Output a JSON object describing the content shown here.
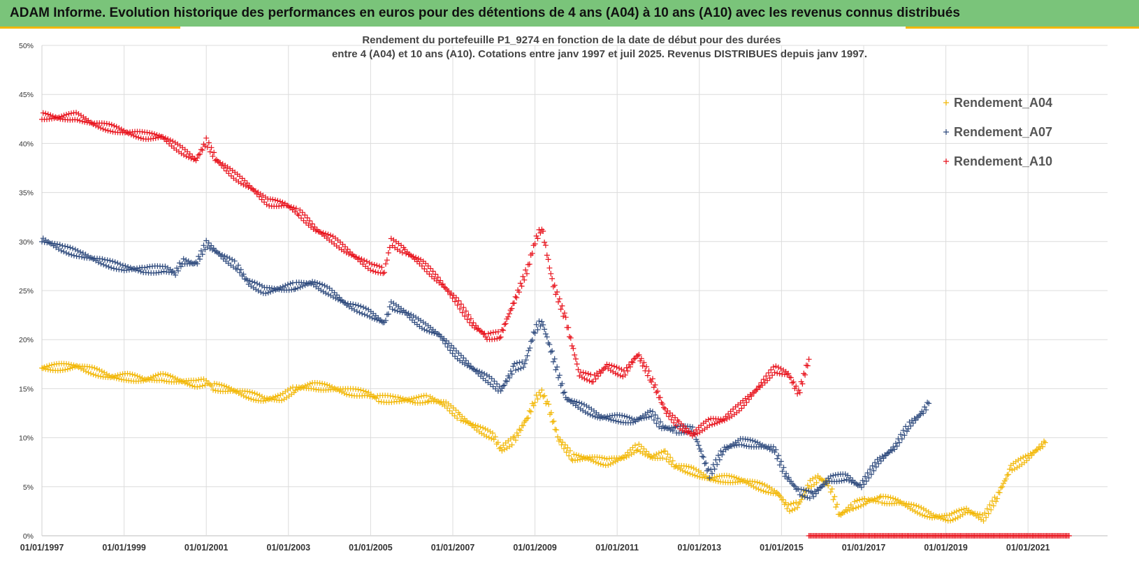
{
  "header": {
    "banner": "ADAM Informe. Evolution historique des performances en euros pour des détentions de 4 ans (A04) à 10 ans (A10) avec les revenus connus distribués",
    "banner_color": "#7ac47a",
    "accent_color": "#f2b705"
  },
  "chart_data": {
    "type": "scatter",
    "title_line1": "Rendement du portefeuille P1_9274 en fonction de la date de début pour des durées",
    "title_line2": "entre 4 (A04) et 10 ans (A10). Cotations  entre janv 1997 et juil 2025. Revenus DISTRIBUES depuis janv 1997.",
    "x_tick_labels": [
      "01/01/1997",
      "01/01/1999",
      "01/01/2001",
      "01/01/2003",
      "01/01/2005",
      "01/01/2007",
      "01/01/2009",
      "01/01/2011",
      "01/01/2013",
      "01/01/2015",
      "01/01/2017",
      "01/01/2019",
      "01/01/2021"
    ],
    "x_tick_years": [
      1997,
      1999,
      2001,
      2003,
      2005,
      2007,
      2009,
      2011,
      2013,
      2015,
      2017,
      2019,
      2021
    ],
    "xlim": [
      "1997-01-01",
      "2022-01-01"
    ],
    "ylim": [
      0,
      0.5
    ],
    "y_tick_values": [
      0,
      0.05,
      0.1,
      0.15,
      0.2,
      0.25,
      0.3,
      0.35,
      0.4,
      0.45,
      0.5
    ],
    "y_tick_labels": [
      "0%",
      "5%",
      "10%",
      "15%",
      "20%",
      "25%",
      "30%",
      "35%",
      "40%",
      "45%",
      "50%"
    ],
    "grid": true,
    "legend_position": "top-right",
    "marker": "plus",
    "series": [
      {
        "name": "Rendement_A04",
        "color": "#f2b705",
        "points": [
          [
            "1997-01",
            0.171
          ],
          [
            "1997-06",
            0.172
          ],
          [
            "1997-11",
            0.173
          ],
          [
            "1998-04",
            0.168
          ],
          [
            "1998-09",
            0.162
          ],
          [
            "1999-02",
            0.162
          ],
          [
            "1999-07",
            0.159
          ],
          [
            "1999-12",
            0.162
          ],
          [
            "2000-05",
            0.158
          ],
          [
            "2000-10",
            0.155
          ],
          [
            "2001-01",
            0.157
          ],
          [
            "2001-03",
            0.152
          ],
          [
            "2001-08",
            0.149
          ],
          [
            "2002-01",
            0.144
          ],
          [
            "2002-06",
            0.139
          ],
          [
            "2002-11",
            0.141
          ],
          [
            "2003-03",
            0.15
          ],
          [
            "2003-08",
            0.153
          ],
          [
            "2004-01",
            0.151
          ],
          [
            "2004-06",
            0.147
          ],
          [
            "2004-12",
            0.145
          ],
          [
            "2005-03",
            0.14
          ],
          [
            "2005-09",
            0.139
          ],
          [
            "2006-02",
            0.138
          ],
          [
            "2006-06",
            0.14
          ],
          [
            "2006-11",
            0.134
          ],
          [
            "2007-03",
            0.121
          ],
          [
            "2007-08",
            0.11
          ],
          [
            "2008-01",
            0.101
          ],
          [
            "2008-03",
            0.088
          ],
          [
            "2008-07",
            0.098
          ],
          [
            "2008-11",
            0.122
          ],
          [
            "2009-01",
            0.139
          ],
          [
            "2009-03",
            0.147
          ],
          [
            "2009-05",
            0.131
          ],
          [
            "2009-08",
            0.098
          ],
          [
            "2009-12",
            0.08
          ],
          [
            "2010-05",
            0.079
          ],
          [
            "2010-10",
            0.075
          ],
          [
            "2011-03",
            0.08
          ],
          [
            "2011-07",
            0.091
          ],
          [
            "2011-11",
            0.08
          ],
          [
            "2012-03",
            0.083
          ],
          [
            "2012-06",
            0.071
          ],
          [
            "2012-11",
            0.066
          ],
          [
            "2013-04",
            0.058
          ],
          [
            "2013-09",
            0.058
          ],
          [
            "2014-02",
            0.056
          ],
          [
            "2014-07",
            0.05
          ],
          [
            "2014-12",
            0.043
          ],
          [
            "2015-03",
            0.028
          ],
          [
            "2015-06",
            0.032
          ],
          [
            "2015-09",
            0.052
          ],
          [
            "2015-12",
            0.059
          ],
          [
            "2016-03",
            0.052
          ],
          [
            "2016-06",
            0.021
          ],
          [
            "2016-10",
            0.031
          ],
          [
            "2017-02",
            0.036
          ],
          [
            "2017-06",
            0.037
          ],
          [
            "2017-11",
            0.035
          ],
          [
            "2018-04",
            0.028
          ],
          [
            "2018-09",
            0.02
          ],
          [
            "2019-02",
            0.018
          ],
          [
            "2019-07",
            0.026
          ],
          [
            "2019-12",
            0.018
          ],
          [
            "2020-04",
            0.04
          ],
          [
            "2020-08",
            0.069
          ],
          [
            "2021-01",
            0.08
          ],
          [
            "2021-06",
            0.095
          ]
        ]
      },
      {
        "name": "Rendement_A07",
        "color": "#2e4a7d",
        "points": [
          [
            "1997-01",
            0.302
          ],
          [
            "1997-07",
            0.293
          ],
          [
            "1998-01",
            0.286
          ],
          [
            "1998-07",
            0.279
          ],
          [
            "1999-01",
            0.273
          ],
          [
            "1999-07",
            0.271
          ],
          [
            "2000-01",
            0.272
          ],
          [
            "2000-04",
            0.268
          ],
          [
            "2000-06",
            0.28
          ],
          [
            "2000-10",
            0.277
          ],
          [
            "2001-01",
            0.298
          ],
          [
            "2001-06",
            0.284
          ],
          [
            "2001-10",
            0.275
          ],
          [
            "2002-01",
            0.259
          ],
          [
            "2002-06",
            0.25
          ],
          [
            "2002-11",
            0.252
          ],
          [
            "2003-03",
            0.255
          ],
          [
            "2003-08",
            0.258
          ],
          [
            "2004-01",
            0.249
          ],
          [
            "2004-06",
            0.236
          ],
          [
            "2004-12",
            0.228
          ],
          [
            "2005-05",
            0.217
          ],
          [
            "2005-07",
            0.235
          ],
          [
            "2005-11",
            0.228
          ],
          [
            "2006-04",
            0.215
          ],
          [
            "2006-09",
            0.205
          ],
          [
            "2007-02",
            0.185
          ],
          [
            "2007-07",
            0.17
          ],
          [
            "2007-12",
            0.158
          ],
          [
            "2008-03",
            0.148
          ],
          [
            "2008-07",
            0.172
          ],
          [
            "2008-10",
            0.175
          ],
          [
            "2009-01",
            0.21
          ],
          [
            "2009-03",
            0.219
          ],
          [
            "2009-06",
            0.185
          ],
          [
            "2009-10",
            0.14
          ],
          [
            "2010-03",
            0.131
          ],
          [
            "2010-08",
            0.121
          ],
          [
            "2011-01",
            0.12
          ],
          [
            "2011-06",
            0.117
          ],
          [
            "2011-11",
            0.125
          ],
          [
            "2012-02",
            0.111
          ],
          [
            "2012-06",
            0.108
          ],
          [
            "2012-11",
            0.109
          ],
          [
            "2013-04",
            0.062
          ],
          [
            "2013-08",
            0.088
          ],
          [
            "2014-01",
            0.096
          ],
          [
            "2014-06",
            0.093
          ],
          [
            "2014-11",
            0.088
          ],
          [
            "2015-02",
            0.063
          ],
          [
            "2015-06",
            0.045
          ],
          [
            "2015-10",
            0.041
          ],
          [
            "2016-03",
            0.058
          ],
          [
            "2016-08",
            0.06
          ],
          [
            "2016-12",
            0.05
          ],
          [
            "2017-05",
            0.075
          ],
          [
            "2017-10",
            0.09
          ],
          [
            "2018-02",
            0.112
          ],
          [
            "2018-06",
            0.125
          ],
          [
            "2018-08",
            0.135
          ]
        ]
      },
      {
        "name": "Rendement_A10",
        "color": "#e8101a",
        "points": [
          [
            "1997-01",
            0.428
          ],
          [
            "1997-06",
            0.426
          ],
          [
            "1997-11",
            0.428
          ],
          [
            "1998-04",
            0.42
          ],
          [
            "1998-09",
            0.416
          ],
          [
            "1999-02",
            0.411
          ],
          [
            "1999-07",
            0.408
          ],
          [
            "1999-12",
            0.407
          ],
          [
            "2000-05",
            0.395
          ],
          [
            "2000-10",
            0.383
          ],
          [
            "2001-01",
            0.402
          ],
          [
            "2001-04",
            0.383
          ],
          [
            "2001-09",
            0.368
          ],
          [
            "2002-02",
            0.355
          ],
          [
            "2002-07",
            0.34
          ],
          [
            "2002-12",
            0.338
          ],
          [
            "2003-04",
            0.33
          ],
          [
            "2003-09",
            0.312
          ],
          [
            "2004-02",
            0.302
          ],
          [
            "2004-07",
            0.288
          ],
          [
            "2005-01",
            0.274
          ],
          [
            "2005-05",
            0.27
          ],
          [
            "2005-07",
            0.3
          ],
          [
            "2005-11",
            0.29
          ],
          [
            "2006-04",
            0.278
          ],
          [
            "2006-09",
            0.26
          ],
          [
            "2007-02",
            0.24
          ],
          [
            "2007-07",
            0.215
          ],
          [
            "2007-11",
            0.203
          ],
          [
            "2008-03",
            0.205
          ],
          [
            "2008-08",
            0.248
          ],
          [
            "2008-11",
            0.274
          ],
          [
            "2009-01",
            0.3
          ],
          [
            "2009-03",
            0.315
          ],
          [
            "2009-06",
            0.26
          ],
          [
            "2009-10",
            0.22
          ],
          [
            "2010-02",
            0.165
          ],
          [
            "2010-06",
            0.16
          ],
          [
            "2010-10",
            0.173
          ],
          [
            "2011-03",
            0.165
          ],
          [
            "2011-07",
            0.185
          ],
          [
            "2011-11",
            0.16
          ],
          [
            "2012-03",
            0.128
          ],
          [
            "2012-07",
            0.113
          ],
          [
            "2012-11",
            0.103
          ],
          [
            "2013-04",
            0.116
          ],
          [
            "2013-08",
            0.118
          ],
          [
            "2014-01",
            0.132
          ],
          [
            "2014-06",
            0.15
          ],
          [
            "2014-11",
            0.17
          ],
          [
            "2015-03",
            0.165
          ],
          [
            "2015-06",
            0.145
          ],
          [
            "2015-09",
            0.18
          ]
        ]
      },
      {
        "name": "",
        "color": "#e8101a",
        "points": [
          [
            "2015-09",
            0.0
          ],
          [
            "2022-01",
            0.0
          ]
        ]
      }
    ]
  }
}
